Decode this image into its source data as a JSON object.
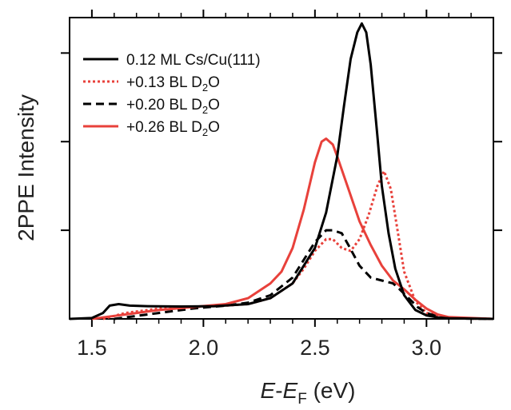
{
  "chart_data": {
    "type": "line",
    "xlabel": {
      "italic_a": "E",
      "sep": "-",
      "italic_b": "E",
      "sub": "F",
      "unit": " (eV)"
    },
    "ylabel": "2PPE Intensity",
    "xlim": [
      1.4,
      3.3
    ],
    "ylim": [
      0,
      1.02
    ],
    "x_ticks": [
      1.5,
      2.0,
      2.5,
      3.0
    ],
    "x_tick_labels": [
      "1.5",
      "2.0",
      "2.5",
      "3.0"
    ],
    "x_minor_ticks": [
      1.6,
      1.7,
      1.8,
      1.9,
      2.1,
      2.2,
      2.3,
      2.4,
      2.6,
      2.7,
      2.8,
      2.9,
      3.1,
      3.2
    ],
    "y_tick_values": [
      0.3,
      0.6,
      0.9
    ],
    "legend": [
      {
        "main": "0.12 ML Cs/Cu(111)",
        "sub": "",
        "tail": "",
        "color": "#000000",
        "dash": "solid"
      },
      {
        "main": "+0.13 BL D",
        "sub": "2",
        "tail": "O",
        "color": "#e8413b",
        "dash": "dotted"
      },
      {
        "main": "+0.20 BL D",
        "sub": "2",
        "tail": "O",
        "color": "#000000",
        "dash": "dashed"
      },
      {
        "main": "+0.26 BL D",
        "sub": "2",
        "tail": "O",
        "color": "#e8413b",
        "dash": "solid"
      }
    ],
    "series": [
      {
        "color": "#000000",
        "dash": "solid",
        "x": [
          1.4,
          1.5,
          1.55,
          1.58,
          1.62,
          1.67,
          1.75,
          1.9,
          2.05,
          2.2,
          2.3,
          2.4,
          2.5,
          2.55,
          2.6,
          2.63,
          2.66,
          2.69,
          2.71,
          2.73,
          2.75,
          2.78,
          2.8,
          2.83,
          2.86,
          2.9,
          2.95,
          3.0,
          3.05,
          3.1,
          3.3
        ],
        "y": [
          0,
          0.003,
          0.02,
          0.045,
          0.05,
          0.045,
          0.043,
          0.042,
          0.043,
          0.05,
          0.07,
          0.12,
          0.24,
          0.36,
          0.55,
          0.72,
          0.88,
          0.97,
          1.0,
          0.97,
          0.86,
          0.62,
          0.45,
          0.29,
          0.17,
          0.08,
          0.03,
          0.012,
          0.005,
          0.002,
          0
        ]
      },
      {
        "color": "#e8413b",
        "dash": "dotted",
        "x": [
          1.55,
          1.65,
          1.8,
          1.95,
          2.1,
          2.2,
          2.3,
          2.4,
          2.45,
          2.5,
          2.55,
          2.58,
          2.62,
          2.66,
          2.7,
          2.74,
          2.78,
          2.81,
          2.84,
          2.87,
          2.9,
          2.95,
          3.0,
          3.1,
          3.2,
          3.3
        ],
        "y": [
          0,
          0.02,
          0.035,
          0.04,
          0.045,
          0.05,
          0.07,
          0.12,
          0.17,
          0.23,
          0.27,
          0.27,
          0.24,
          0.23,
          0.27,
          0.35,
          0.45,
          0.5,
          0.44,
          0.3,
          0.16,
          0.06,
          0.02,
          0.005,
          0.001,
          0
        ]
      },
      {
        "color": "#000000",
        "dash": "dashed",
        "x": [
          1.6,
          1.7,
          1.8,
          1.95,
          2.1,
          2.2,
          2.3,
          2.4,
          2.45,
          2.5,
          2.55,
          2.58,
          2.62,
          2.65,
          2.7,
          2.75,
          2.8,
          2.85,
          2.88,
          2.92,
          2.96,
          3.0,
          3.05,
          3.1,
          3.3
        ],
        "y": [
          0,
          0.01,
          0.02,
          0.035,
          0.045,
          0.055,
          0.08,
          0.14,
          0.2,
          0.26,
          0.3,
          0.3,
          0.29,
          0.25,
          0.18,
          0.14,
          0.13,
          0.12,
          0.1,
          0.07,
          0.04,
          0.02,
          0.008,
          0.002,
          0
        ]
      },
      {
        "color": "#e8413b",
        "dash": "solid",
        "x": [
          1.5,
          1.6,
          1.7,
          1.8,
          1.95,
          2.1,
          2.2,
          2.3,
          2.35,
          2.4,
          2.45,
          2.5,
          2.53,
          2.55,
          2.58,
          2.6,
          2.65,
          2.7,
          2.75,
          2.8,
          2.85,
          2.9,
          2.95,
          3.0,
          3.05,
          3.1,
          3.3
        ],
        "y": [
          0,
          0.01,
          0.02,
          0.03,
          0.04,
          0.05,
          0.07,
          0.12,
          0.16,
          0.24,
          0.37,
          0.53,
          0.6,
          0.61,
          0.59,
          0.55,
          0.44,
          0.33,
          0.25,
          0.18,
          0.13,
          0.1,
          0.065,
          0.035,
          0.015,
          0.006,
          0
        ]
      }
    ]
  }
}
